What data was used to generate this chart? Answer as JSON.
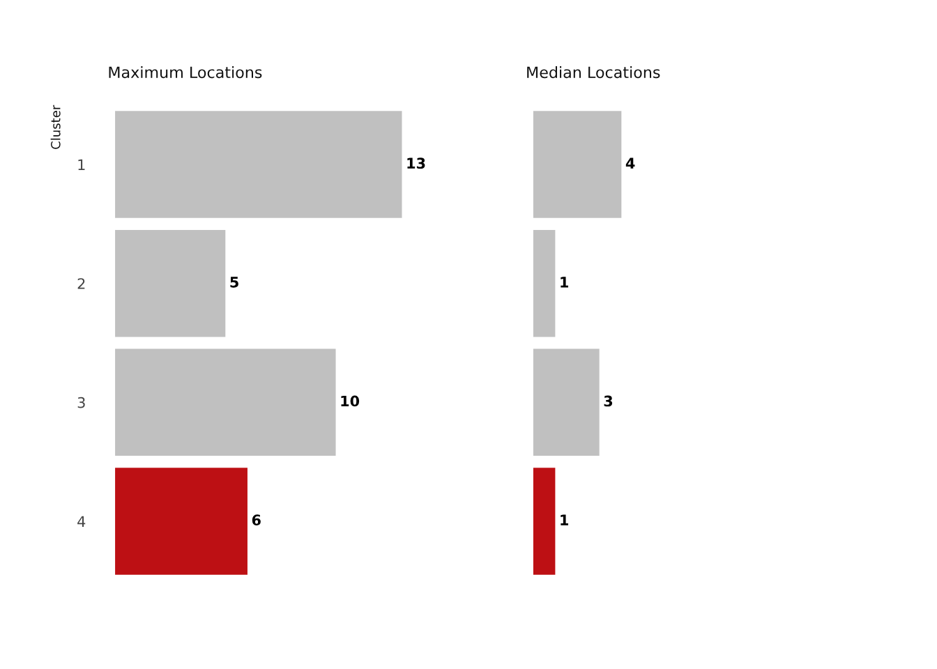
{
  "chart_data": [
    {
      "type": "bar",
      "orientation": "horizontal",
      "title": "Maximum Locations",
      "ylabel": "Cluster",
      "categories": [
        "1",
        "2",
        "3",
        "4"
      ],
      "values": [
        13,
        5,
        10,
        6
      ],
      "colors": [
        "#c0c0c0",
        "#c0c0c0",
        "#c0c0c0",
        "#bd1014"
      ],
      "data_labels": true,
      "tick_labels": "y",
      "grid": false,
      "legend": false
    },
    {
      "type": "bar",
      "orientation": "horizontal",
      "title": "Median Locations",
      "categories": [
        "1",
        "2",
        "3",
        "4"
      ],
      "values": [
        4,
        1,
        3,
        1
      ],
      "colors": [
        "#c0c0c0",
        "#c0c0c0",
        "#c0c0c0",
        "#bd1014"
      ],
      "data_labels": true,
      "tick_labels": false,
      "grid": false,
      "legend": false
    }
  ]
}
